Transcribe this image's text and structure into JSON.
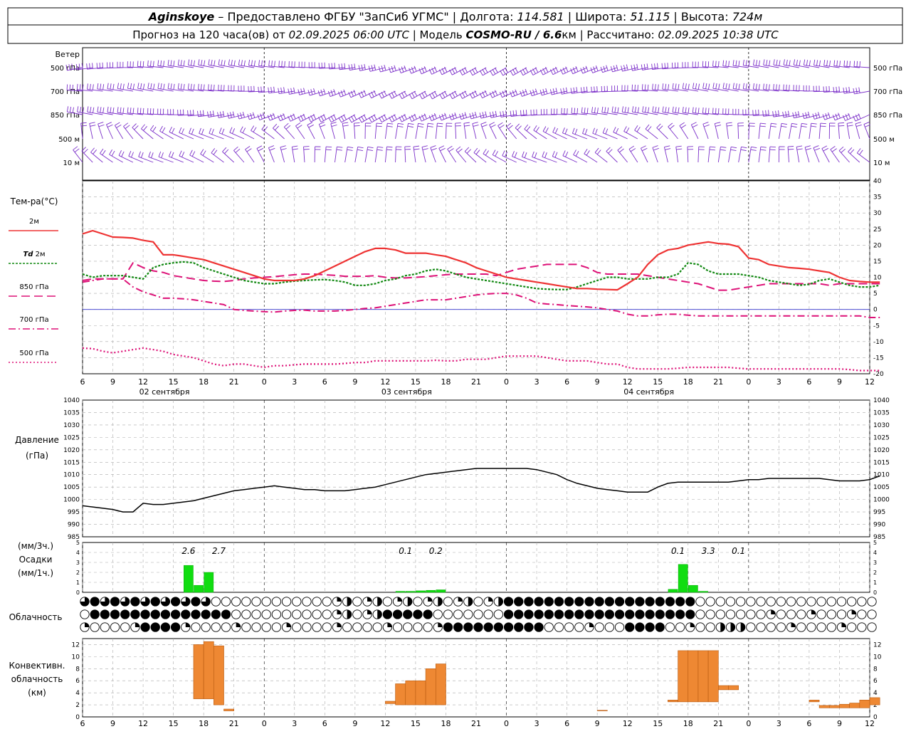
{
  "header": {
    "station": "Aginskoye",
    "line1_rest": " – Предоставлено ФГБУ \"ЗапСиб УГМС\" | Долгота: ",
    "lon": "114.581",
    "lat_label": " | Широта: ",
    "lat": "51.115",
    "alt_label": " | Высота: ",
    "alt": "724м",
    "line2_a": "Прогноз на 120 часа(ов) от ",
    "run": "02.09.2025 06:00 UTC",
    "line2_b": "  | Модель ",
    "model": "COSMO-RU / 6.6",
    "model_unit": "км",
    "line2_c": " | Рассчитано: ",
    "calc": "02.09.2025 10:38 UTC"
  },
  "wind_panel": {
    "title": "Ветер",
    "levels": [
      "500 гПа",
      "700 гПа",
      "850 гПа",
      "500 м",
      "10 м"
    ],
    "color": "#7b2fc9"
  },
  "temp_panel": {
    "title": "Тем-ра(°С)",
    "legend": [
      {
        "label": "2м",
        "color": "#ee3333",
        "style": "solid"
      },
      {
        "label_italic": "Td",
        "label": " 2м",
        "color": "#118811",
        "style": "dotted"
      },
      {
        "label": "850 гПа",
        "color": "#dd1177",
        "style": "dash"
      },
      {
        "label": "700 гПа",
        "color": "#dd1177",
        "style": "dashdot"
      },
      {
        "label": "500 гПа",
        "color": "#dd1177",
        "style": "dot"
      }
    ],
    "y_ticks": [
      "40",
      "35",
      "30",
      "25",
      "20",
      "15",
      "10",
      "5",
      "0",
      "-5",
      "-10",
      "-15",
      "-20"
    ]
  },
  "x_axis": {
    "hour_labels": [
      "6",
      "9",
      "12",
      "15",
      "18",
      "21",
      "0",
      "3",
      "6",
      "9",
      "12",
      "15",
      "18",
      "21",
      "0",
      "3",
      "6",
      "9",
      "12",
      "15",
      "18",
      "21",
      "0",
      "3",
      "6",
      "9",
      "12"
    ],
    "day_labels": [
      "02 сентября",
      "03 сентября",
      "04 сентября"
    ]
  },
  "pressure_panel": {
    "title1": "Давление",
    "title2": "(гПа)",
    "y_ticks": [
      "1040",
      "1035",
      "1030",
      "1025",
      "1020",
      "1015",
      "1010",
      "1005",
      "1000",
      "995",
      "990",
      "985"
    ]
  },
  "precip_panel": {
    "title1": "(мм/3ч.)",
    "title2": "Осадки",
    "title3": "(мм/1ч.)",
    "y_ticks": [
      "5",
      "4",
      "3",
      "2",
      "1",
      "0"
    ],
    "annotations": [
      {
        "text": "2.6",
        "hour": 10.5
      },
      {
        "text": "2.7",
        "hour": 13.5
      },
      {
        "text": "0.1",
        "hour": 32.0
      },
      {
        "text": "0.2",
        "hour": 35.0
      },
      {
        "text": "0.1",
        "hour": 59.0
      },
      {
        "text": "3.3",
        "hour": 62.0
      },
      {
        "text": "0.1",
        "hour": 65.0
      }
    ]
  },
  "cloud_panel": {
    "title": "Облачность"
  },
  "conv_panel": {
    "title1": "Конвективн.",
    "title2": "облачность",
    "title3": "(км)",
    "y_ticks": [
      "12",
      "10",
      "8",
      "6",
      "4",
      "2",
      "0"
    ]
  },
  "colors": {
    "t2m": "#ee3333",
    "td2m": "#118811",
    "upper": "#dd1177",
    "pressure": "#000000",
    "precip": "#11dd11",
    "conv": "#ee8833",
    "zero_line": "#3333cc"
  },
  "chart_data": {
    "type": "line",
    "x_start": "02.09.2025 06:00 UTC",
    "x_hours": [
      0,
      1,
      2,
      3,
      4,
      5,
      6,
      7,
      8,
      9,
      10,
      11,
      12,
      13,
      14,
      15,
      16,
      17,
      18,
      19,
      20,
      21,
      22,
      23,
      24,
      25,
      26,
      27,
      28,
      29,
      30,
      31,
      32,
      33,
      34,
      35,
      36,
      37,
      38,
      39,
      40,
      41,
      42,
      43,
      44,
      45,
      46,
      47,
      48,
      49,
      50,
      51,
      52,
      53,
      54,
      55,
      56,
      57,
      58,
      59,
      60,
      61,
      62,
      63,
      64,
      65,
      66,
      67,
      68,
      69,
      70,
      71,
      72,
      73,
      74,
      75,
      76,
      77,
      78,
      79
    ],
    "temperature_2m": [
      23.5,
      24.5,
      23.5,
      22.5,
      22.4,
      22.2,
      21.5,
      21,
      17,
      17,
      16.5,
      16,
      15.5,
      14.5,
      13.5,
      12.5,
      11.5,
      10.5,
      9.5,
      9,
      9,
      9,
      9.5,
      10.5,
      12,
      13.5,
      15,
      16.5,
      18,
      19,
      19,
      18.5,
      17.5,
      17.5,
      17.5,
      17,
      16.5,
      15.5,
      14.5,
      13,
      12,
      11,
      10,
      9.5,
      9,
      8.5,
      8,
      7.5,
      7,
      6.5,
      6.5,
      6.3,
      6.2,
      6.1,
      8,
      10,
      14,
      17,
      18.5,
      19,
      20,
      20.5,
      21,
      20.5,
      20.3,
      19.5,
      16,
      15.5,
      14,
      13.5,
      13,
      12.8,
      12.5,
      12,
      11.5,
      10,
      9,
      8.7,
      8.5,
      8.5
    ],
    "dewpoint_2m": [
      11,
      10,
      10.5,
      10.5,
      10.5,
      10,
      9.5,
      13,
      14,
      14.5,
      14.8,
      14.5,
      13,
      12,
      11,
      10,
      9,
      8.5,
      8,
      8,
      8.5,
      8.8,
      9,
      9.2,
      9.3,
      9,
      8.5,
      7.5,
      7.5,
      8,
      9,
      9.5,
      10.5,
      11,
      12,
      12.5,
      12,
      11,
      10,
      9.5,
      9,
      8.5,
      8,
      7.5,
      7,
      6.5,
      6.3,
      6.2,
      6.2,
      7,
      8,
      9,
      10,
      10,
      9.5,
      9.5,
      9.5,
      10,
      10,
      11,
      14.5,
      14,
      12,
      11,
      11,
      11,
      10.5,
      10,
      9,
      8.5,
      8,
      7.5,
      7.8,
      9,
      9.5,
      8.5,
      7.5,
      7,
      7,
      7.5
    ],
    "t850": [
      9,
      9.5,
      9.5,
      9.5,
      9.5,
      14.5,
      13,
      12,
      11.5,
      10.5,
      10,
      9.5,
      9,
      8.8,
      8.7,
      9,
      9.5,
      9.8,
      10,
      10.2,
      10.5,
      10.8,
      11,
      11,
      10.8,
      10.6,
      10.3,
      10.3,
      10.3,
      10.5,
      10,
      9.8,
      9.8,
      10,
      10.2,
      10.5,
      10.8,
      11,
      11,
      11,
      11,
      10.5,
      11.5,
      12.5,
      13,
      13.5,
      14,
      14,
      14,
      14,
      13,
      11.5,
      11,
      11,
      11,
      11,
      10.5,
      10,
      9.5,
      9,
      8.5,
      8,
      7,
      6,
      6,
      6.5,
      7,
      7.5,
      8,
      8,
      8,
      8,
      8,
      8,
      7.5,
      8,
      8,
      8,
      8,
      8
    ],
    "t700": [
      8.5,
      9,
      9.5,
      9.5,
      9.5,
      7,
      5.5,
      4.5,
      3.5,
      3.5,
      3.3,
      3,
      2.5,
      2,
      1.5,
      0,
      -0.3,
      -0.5,
      -0.7,
      -0.8,
      -0.5,
      -0.3,
      -0.2,
      -0.5,
      -0.5,
      -0.5,
      -0.3,
      0,
      0.3,
      0.5,
      1,
      1.5,
      2,
      2.5,
      3,
      3,
      3,
      3.5,
      4,
      4.5,
      4.8,
      5,
      5,
      4.5,
      3.5,
      2,
      1.7,
      1.5,
      1.2,
      1,
      0.8,
      0.5,
      0,
      -0.5,
      -1.5,
      -2,
      -2,
      -1.7,
      -1.5,
      -1.5,
      -1.8,
      -2,
      -2,
      -2,
      -2,
      -2,
      -2,
      -2,
      -2,
      -2,
      -2,
      -2,
      -2,
      -2,
      -2,
      -2,
      -2,
      -2,
      -2.5,
      -2.5
    ],
    "t500": [
      -12,
      -12.2,
      -13,
      -13.5,
      -13,
      -12.5,
      -12,
      -12.5,
      -13,
      -14,
      -14.5,
      -15,
      -16,
      -17,
      -17.5,
      -17,
      -17,
      -17.5,
      -18,
      -17.5,
      -17.5,
      -17.2,
      -17,
      -17,
      -17,
      -17,
      -16.8,
      -16.5,
      -16.5,
      -16,
      -16,
      -16,
      -16,
      -16,
      -16,
      -15.8,
      -16,
      -16,
      -15.5,
      -15.5,
      -15.5,
      -15,
      -14.5,
      -14.5,
      -14.5,
      -14.5,
      -15,
      -15.5,
      -16,
      -16,
      -16,
      -16.5,
      -17,
      -17,
      -18,
      -18.5,
      -18.5,
      -18.5,
      -18.5,
      -18.3,
      -18,
      -18,
      -18,
      -18,
      -18,
      -18.3,
      -18.5,
      -18.5,
      -18.5,
      -18.5,
      -18.5,
      -18.5,
      -18.5,
      -18.5,
      -18.5,
      -18.5,
      -18.7,
      -19,
      -19,
      -19
    ],
    "pressure_hpa": [
      997.5,
      997,
      996.5,
      996,
      995,
      995,
      998.5,
      998,
      998,
      998.5,
      999,
      999.5,
      1000.5,
      1001.5,
      1002.5,
      1003.5,
      1004,
      1004.5,
      1005,
      1005.5,
      1005,
      1004.5,
      1004,
      1004,
      1003.5,
      1003.5,
      1003.5,
      1004,
      1004.5,
      1005,
      1006,
      1007,
      1008,
      1009,
      1010,
      1010.5,
      1011,
      1011.5,
      1012,
      1012.5,
      1012.5,
      1012.5,
      1012.5,
      1012.5,
      1012.5,
      1012,
      1011,
      1010,
      1008,
      1006.5,
      1005.5,
      1004.5,
      1004,
      1003.5,
      1003,
      1003,
      1003,
      1005,
      1006.5,
      1007,
      1007,
      1007,
      1007,
      1007,
      1007,
      1007.5,
      1008,
      1008,
      1008.5,
      1008.5,
      1008.5,
      1008.5,
      1008.5,
      1008.5,
      1008,
      1007.5,
      1007.5,
      1007.5,
      1008,
      1009.5
    ],
    "precip_1h_mm": [
      {
        "hour": 10,
        "v": 2.7
      },
      {
        "hour": 11,
        "v": 0.7
      },
      {
        "hour": 12,
        "v": 2.0
      },
      {
        "hour": 31,
        "v": 0.1
      },
      {
        "hour": 32,
        "v": 0.1
      },
      {
        "hour": 33,
        "v": 0.15
      },
      {
        "hour": 34,
        "v": 0.2
      },
      {
        "hour": 35,
        "v": 0.25
      },
      {
        "hour": 58,
        "v": 0.3
      },
      {
        "hour": 59,
        "v": 2.8
      },
      {
        "hour": 60,
        "v": 0.7
      },
      {
        "hour": 61,
        "v": 0.1
      }
    ],
    "convective_cloud_km": [
      {
        "hour": 11,
        "base": 3,
        "top": 12
      },
      {
        "hour": 12,
        "base": 3,
        "top": 12.5
      },
      {
        "hour": 13,
        "base": 2,
        "top": 11.8
      },
      {
        "hour": 14,
        "base": 1,
        "top": 1.3
      },
      {
        "hour": 30,
        "base": 2.2,
        "top": 2.6
      },
      {
        "hour": 31,
        "base": 2,
        "top": 5.5
      },
      {
        "hour": 32,
        "base": 2,
        "top": 6
      },
      {
        "hour": 33,
        "base": 2,
        "top": 6
      },
      {
        "hour": 34,
        "base": 2,
        "top": 8
      },
      {
        "hour": 35,
        "base": 2,
        "top": 8.8
      },
      {
        "hour": 51,
        "base": 1,
        "top": 1.1
      },
      {
        "hour": 58,
        "base": 2.5,
        "top": 2.8
      },
      {
        "hour": 59,
        "base": 2.5,
        "top": 11
      },
      {
        "hour": 60,
        "base": 2.5,
        "top": 11
      },
      {
        "hour": 61,
        "base": 2.5,
        "top": 11
      },
      {
        "hour": 62,
        "base": 2.5,
        "top": 11
      },
      {
        "hour": 63,
        "base": 4.5,
        "top": 5.2
      },
      {
        "hour": 64,
        "base": 4.5,
        "top": 5.2
      },
      {
        "hour": 72,
        "base": 2.5,
        "top": 2.8
      },
      {
        "hour": 73,
        "base": 1.5,
        "top": 1.9
      },
      {
        "hour": 74,
        "base": 1.5,
        "top": 1.9
      },
      {
        "hour": 75,
        "base": 1.5,
        "top": 2.1
      },
      {
        "hour": 76,
        "base": 1.5,
        "top": 2.3
      },
      {
        "hour": 77,
        "base": 1.5,
        "top": 2.8
      },
      {
        "hour": 78,
        "base": 2,
        "top": 3.2
      }
    ]
  }
}
